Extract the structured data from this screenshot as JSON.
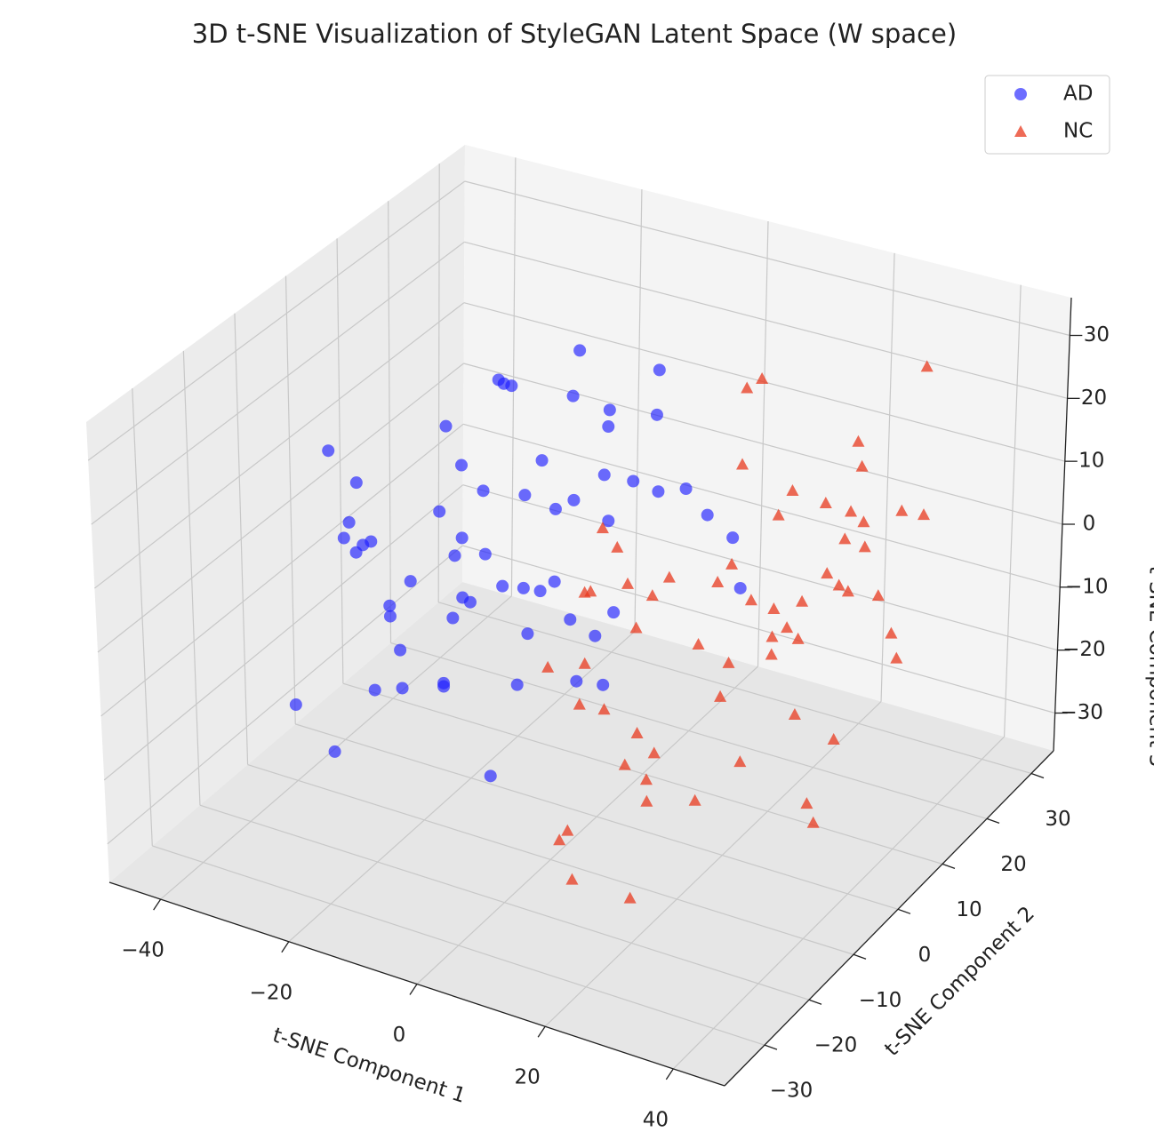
{
  "chart_data": {
    "type": "scatter3d",
    "title": "3D t-SNE Visualization of StyleGAN Latent Space (W space)",
    "xlabel": "t-SNE Component 1",
    "ylabel": "t-SNE Component 2",
    "zlabel": "t-SNE Component 3",
    "xlim": [
      -48,
      48
    ],
    "ylim": [
      -39,
      35
    ],
    "zlim": [
      -36,
      36
    ],
    "xticks": [
      {
        "value": -40,
        "label": "−40"
      },
      {
        "value": -20,
        "label": "−20"
      },
      0,
      20,
      40
    ],
    "yticks": [
      {
        "value": -30,
        "label": "−30"
      },
      {
        "value": -20,
        "label": "−20"
      },
      {
        "value": -10,
        "label": "−10"
      },
      0,
      10,
      20,
      30
    ],
    "zticks": [
      {
        "value": -30,
        "label": "−30"
      },
      {
        "value": -20,
        "label": "−20"
      },
      {
        "value": -10,
        "label": "−10"
      },
      0,
      10,
      20,
      30
    ],
    "grid": true,
    "legend": "upper right",
    "series": [
      {
        "name": "AD",
        "color": "#1f1fff",
        "marker": "circle",
        "x": [
          -32,
          -25,
          -18,
          -12,
          -8,
          -3,
          2,
          -28,
          -20,
          -15,
          -10,
          -5,
          0,
          5,
          -35,
          -22,
          -16,
          -9,
          -4,
          -30,
          -24,
          -14,
          -7,
          -1,
          3,
          -26,
          -19,
          -11,
          -6,
          -2,
          -33,
          -21,
          -13,
          -17,
          -27,
          -23,
          -8,
          -4,
          -29,
          -15,
          -10,
          -12,
          -20,
          -6,
          -18,
          -25,
          -3,
          -31,
          -14,
          -9,
          -22,
          -16,
          -36,
          -11,
          -5,
          -19,
          -7,
          -24,
          -13,
          -2
        ],
        "y": [
          -10,
          5,
          20,
          -25,
          12,
          -5,
          28,
          -18,
          0,
          15,
          -30,
          8,
          -12,
          22,
          3,
          -22,
          25,
          -8,
          18,
          10,
          -15,
          -28,
          5,
          14,
          -20,
          20,
          -3,
          9,
          -16,
          26,
          -6,
          16,
          -24,
          2,
          -27,
          11,
          -12,
          24,
          7,
          -19,
          13,
          -2,
          29,
          -9,
          -26,
          18,
          6,
          -14,
          21,
          -21,
          1,
          -11,
          -1,
          27,
          -17,
          -7,
          4,
          23,
          -13,
          10
        ],
        "z": [
          5,
          -12,
          20,
          -3,
          8,
          15,
          -18,
          25,
          -8,
          0,
          12,
          -22,
          28,
          -5,
          -15,
          18,
          -25,
          3,
          22,
          -10,
          10,
          -2,
          -20,
          6,
          14,
          -28,
          16,
          -14,
          24,
          -6,
          11,
          -17,
          2,
          27,
          -9,
          19,
          -24,
          -1,
          13,
          9,
          -19,
          30,
          4,
          -11,
          17,
          -4,
          21,
          -26,
          -7,
          23,
          1,
          -13,
          -3,
          7,
          15,
          -16,
          26,
          -21,
          0,
          10
        ]
      },
      {
        "name": "NC",
        "color": "#e8391f",
        "marker": "triangle",
        "x": [
          15,
          22,
          30,
          8,
          35,
          18,
          25,
          12,
          40,
          20,
          5,
          28,
          33,
          16,
          10,
          38,
          24,
          14,
          27,
          3,
          31,
          19,
          11,
          36,
          23,
          7,
          29,
          17,
          42,
          21,
          13,
          26,
          34,
          9,
          32,
          20,
          15,
          37,
          25,
          6,
          18,
          30,
          12,
          28,
          22,
          39,
          16,
          4,
          33,
          24,
          10,
          27,
          19,
          35,
          14,
          0,
          26,
          21,
          31,
          17
        ],
        "y": [
          8,
          -20,
          15,
          -5,
          22,
          -28,
          3,
          18,
          -10,
          27,
          -15,
          10,
          -3,
          -24,
          25,
          1,
          -12,
          12,
          20,
          -8,
          -18,
          5,
          -26,
          14,
          24,
          -1,
          -14,
          29,
          -6,
          9,
          -21,
          16,
          2,
          -11,
          26,
          -17,
          21,
          -4,
          -27,
          7,
          13,
          -9,
          -23,
          19,
          0,
          11,
          -16,
          23,
          -2,
          28,
          -13,
          6,
          -19,
          17,
          -7,
          4,
          -25,
          12,
          -22,
          -29
        ],
        "z": [
          3,
          -10,
          18,
          -22,
          7,
          12,
          -5,
          25,
          -15,
          0,
          -28,
          15,
          -8,
          20,
          -2,
          10,
          -18,
          28,
          5,
          -12,
          22,
          -25,
          8,
          -6,
          14,
          -20,
          1,
          -14,
          24,
          -3,
          17,
          -27,
          11,
          -9,
          27,
          -16,
          6,
          -23,
          19,
          -1,
          -11,
          13,
          -19,
          2,
          26,
          -7,
          16,
          -26,
          9,
          -13,
          21,
          -4,
          -30,
          11,
          -17,
          4,
          23,
          -8,
          15,
          -21
        ]
      }
    ]
  }
}
